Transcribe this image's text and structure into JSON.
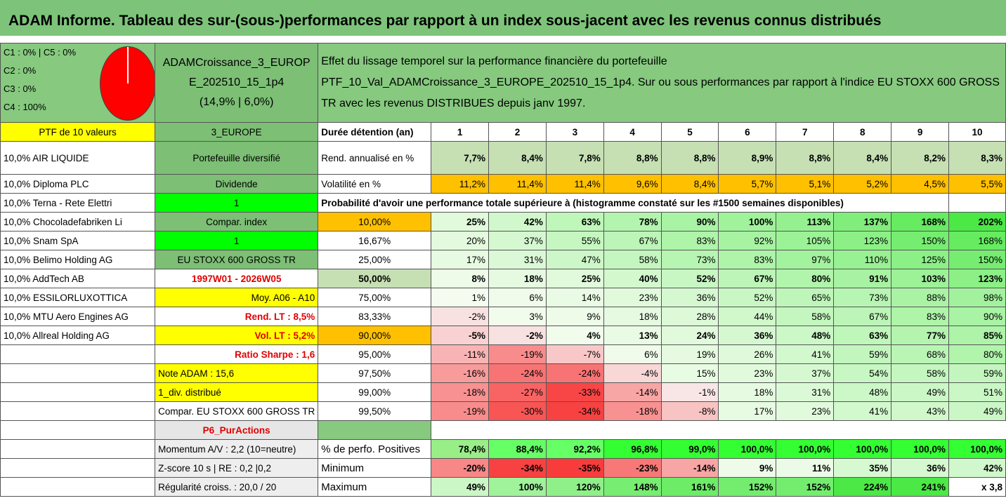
{
  "title": "ADAM Informe. Tableau des sur-(sous-)performances par rapport à un index sous-jacent avec les revenus connus distribués",
  "pie_legend": [
    "C1 : 0% | C5 : 0%",
    "C2 : 0%",
    "C3 : 0%",
    "C4 : 100%"
  ],
  "portfolio": {
    "name_line1": "ADAMCroissance_3_EUROP",
    "name_line2": "E_202510_15_1p4",
    "name_line3": "(14,9% | 6,0%)",
    "desc_line1": "Effet du lissage temporel sur la performance financière du portefeuille",
    "desc_line2": "PTF_10_Val_ADAMCroissance_3_EUROPE_202510_15_1p4. Sur ou sous performances par rapport à l'indice EU STOXX 600 GROSS",
    "desc_line3": "TR avec les revenus DISTRIBUES depuis janv 1997."
  },
  "header_row": {
    "ptf": "PTF de 10 valeurs",
    "region": "3_EUROPE",
    "label": "Durée détention (an)",
    "years": [
      "1",
      "2",
      "3",
      "4",
      "5",
      "6",
      "7",
      "8",
      "9",
      "10"
    ]
  },
  "holdings": [
    "10,0% AIR LIQUIDE",
    "10,0% Diploma PLC",
    "10,0% Terna - Rete Elettri",
    "10,0% Chocoladefabriken Li",
    "10,0% Snam SpA",
    "10,0% Belimo Holding AG",
    "10,0% AddTech AB",
    "10,0% ESSILORLUXOTTICA",
    "10,0% MTU Aero Engines AG",
    "10,0% Allreal Holding AG"
  ],
  "info": {
    "diversified": "Portefeuille diversifié",
    "dividend": "Dividende",
    "one_a": "1",
    "compar_index": "Compar. index",
    "one_b": "1",
    "index_name": "EU STOXX 600 GROSS TR",
    "period": "1997W01 - 2026W05",
    "moy": "Moy. A06 - A10",
    "rend_lt": "Rend. LT : 8,5%",
    "vol_lt": "Vol. LT : 5,2%",
    "sharpe": "Ratio Sharpe : 1,6",
    "note": "Note ADAM : 15,6",
    "div": "1_div. distribué",
    "compar": "Compar. EU STOXX 600 GROSS TR",
    "p6": "P6_PurActions",
    "momentum": "Momentum A/V : 2,2 (10=neutre)",
    "zscore": "Z-score 10 s | RE : 0,2 |0,2",
    "regularite": "Régularité croiss. : 20,0 / 20"
  },
  "rend": {
    "label": "Rend. annualisé en %",
    "values": [
      "7,7%",
      "8,4%",
      "7,8%",
      "8,8%",
      "8,8%",
      "8,9%",
      "8,8%",
      "8,4%",
      "8,2%",
      "8,3%"
    ]
  },
  "vol": {
    "label": "Volatilité en %",
    "values": [
      "11,2%",
      "11,4%",
      "11,4%",
      "9,6%",
      "8,4%",
      "5,7%",
      "5,1%",
      "5,2%",
      "4,5%",
      "5,5%"
    ]
  },
  "proba_header": "Probabilité d'avoir une performance totale supérieure à (histogramme constaté sur les #1500 semaines disponibles)",
  "proba_rows": [
    {
      "p": "10,00%",
      "values": [
        "25%",
        "42%",
        "63%",
        "78%",
        "90%",
        "100%",
        "113%",
        "137%",
        "168%",
        "202%"
      ]
    },
    {
      "p": "16,67%",
      "values": [
        "20%",
        "37%",
        "55%",
        "67%",
        "83%",
        "92%",
        "105%",
        "123%",
        "150%",
        "168%"
      ]
    },
    {
      "p": "25,00%",
      "values": [
        "17%",
        "31%",
        "47%",
        "58%",
        "73%",
        "83%",
        "97%",
        "110%",
        "125%",
        "150%"
      ]
    },
    {
      "p": "50,00%",
      "values": [
        "8%",
        "18%",
        "25%",
        "40%",
        "52%",
        "67%",
        "80%",
        "91%",
        "103%",
        "123%"
      ]
    },
    {
      "p": "75,00%",
      "values": [
        "1%",
        "6%",
        "14%",
        "23%",
        "36%",
        "52%",
        "65%",
        "73%",
        "88%",
        "98%"
      ]
    },
    {
      "p": "83,33%",
      "values": [
        "-2%",
        "3%",
        "9%",
        "18%",
        "28%",
        "44%",
        "58%",
        "67%",
        "83%",
        "90%"
      ]
    },
    {
      "p": "90,00%",
      "values": [
        "-5%",
        "-2%",
        "4%",
        "13%",
        "24%",
        "36%",
        "48%",
        "63%",
        "77%",
        "85%"
      ]
    },
    {
      "p": "95,00%",
      "values": [
        "-11%",
        "-19%",
        "-7%",
        "6%",
        "19%",
        "26%",
        "41%",
        "59%",
        "68%",
        "80%"
      ]
    },
    {
      "p": "97,50%",
      "values": [
        "-16%",
        "-24%",
        "-24%",
        "-4%",
        "15%",
        "23%",
        "37%",
        "54%",
        "58%",
        "59%"
      ]
    },
    {
      "p": "99,00%",
      "values": [
        "-18%",
        "-27%",
        "-33%",
        "-14%",
        "-1%",
        "18%",
        "31%",
        "48%",
        "49%",
        "51%"
      ]
    },
    {
      "p": "99,50%",
      "values": [
        "-19%",
        "-30%",
        "-34%",
        "-18%",
        "-8%",
        "17%",
        "23%",
        "41%",
        "43%",
        "49%"
      ]
    }
  ],
  "pct_pos": {
    "label": "% de perfo. Positives",
    "values": [
      "78,4%",
      "88,4%",
      "92,2%",
      "96,8%",
      "99,0%",
      "100,0%",
      "100,0%",
      "100,0%",
      "100,0%",
      "100,0%"
    ]
  },
  "minimum": {
    "label": "Minimum",
    "values": [
      "-20%",
      "-34%",
      "-35%",
      "-23%",
      "-14%",
      "9%",
      "11%",
      "35%",
      "36%",
      "42%"
    ]
  },
  "maximum": {
    "label": "Maximum",
    "values": [
      "49%",
      "100%",
      "120%",
      "148%",
      "161%",
      "152%",
      "152%",
      "224%",
      "241%",
      "x 3,8"
    ]
  },
  "colors": {
    "header_green": "#7dc47a",
    "bright_green": "#00ff00",
    "yellow": "#ffff00",
    "orange": "#ffc000",
    "red_text": "#e00000"
  }
}
